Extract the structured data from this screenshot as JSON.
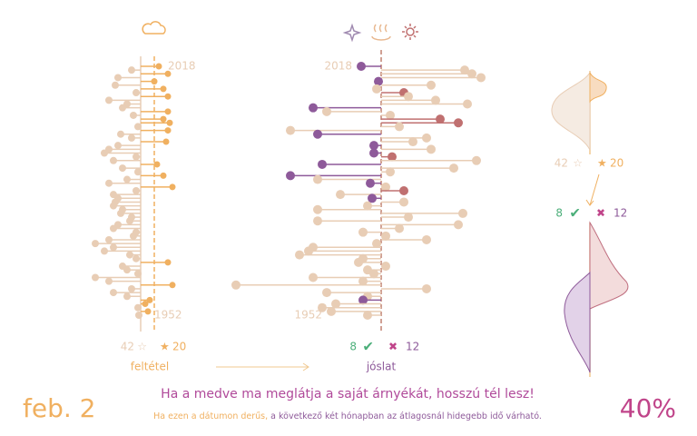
{
  "left_panel": {
    "year_top": "2018",
    "year_bottom": "1952",
    "cloudy_count": 42,
    "cloudy_symbol": "☆",
    "clear_symbol": "★",
    "clear_count": 20,
    "label": "feltétel",
    "values": [
      20,
      -10,
      30,
      -25,
      15,
      -28,
      25,
      -5,
      30,
      -35,
      -15,
      -20,
      30,
      -8,
      25,
      32,
      -3,
      30,
      -22,
      -10,
      28,
      -25,
      -35,
      -40,
      -5,
      -30,
      18,
      -20,
      -3,
      25,
      -15,
      -35,
      35,
      -5,
      -30,
      -25,
      -28,
      -30,
      -20,
      -22,
      -10,
      -12,
      -25,
      -30,
      -5,
      -8,
      -35,
      -50,
      -30,
      -40,
      -12,
      -5,
      30,
      -20,
      -15,
      -3,
      -50,
      -35,
      35,
      -10,
      -30,
      -15,
      10,
      5,
      -3,
      8,
      -2
    ]
  },
  "middle_panel": {
    "year_top": "2018",
    "year_bottom": "1952",
    "correct_count": 8,
    "correct_symbol": "✔",
    "wrong_symbol": "✖",
    "wrong_count": 12,
    "label": "jóslat",
    "values": [
      -22,
      92,
      100,
      110,
      -3,
      55,
      -5,
      25,
      30,
      60,
      95,
      -75,
      -60,
      10,
      65,
      85,
      20,
      -100,
      -70,
      50,
      35,
      -8,
      55,
      -8,
      12,
      105,
      -65,
      80,
      10,
      -100,
      -70,
      -12,
      5,
      25,
      -45,
      -10,
      25,
      -15,
      -70,
      90,
      30,
      -70,
      85,
      20,
      -20,
      5,
      50,
      -5,
      -75,
      -80,
      -90,
      -20,
      -25,
      5,
      -15,
      -8,
      -75,
      -20,
      -160,
      50,
      -60,
      -15,
      -20,
      -50,
      -65,
      -55,
      -15
    ],
    "highlighted_rows": [
      0,
      4,
      7,
      11,
      14,
      15,
      18,
      21,
      23,
      24,
      26,
      29,
      31,
      33,
      35,
      62
    ]
  },
  "right_panel": {
    "cloudy_count": 42,
    "cloudy_symbol": "☆",
    "clear_symbol": "★",
    "clear_count": 20,
    "correct_count": 8,
    "correct_symbol": "✔",
    "wrong_symbol": "✖",
    "wrong_count": 12
  },
  "footer": {
    "date": "feb. 2",
    "headline": "Ha a medve ma meglátja a saját árnyékát, hosszú tél lesz!",
    "note_part1": "Ha ezen a dátumon derűs,",
    "note_part2": " a következő két hónapban az átlagosnál hidegebb idő várható.",
    "percent": {
      "value": 40,
      "label": "40%"
    }
  }
}
